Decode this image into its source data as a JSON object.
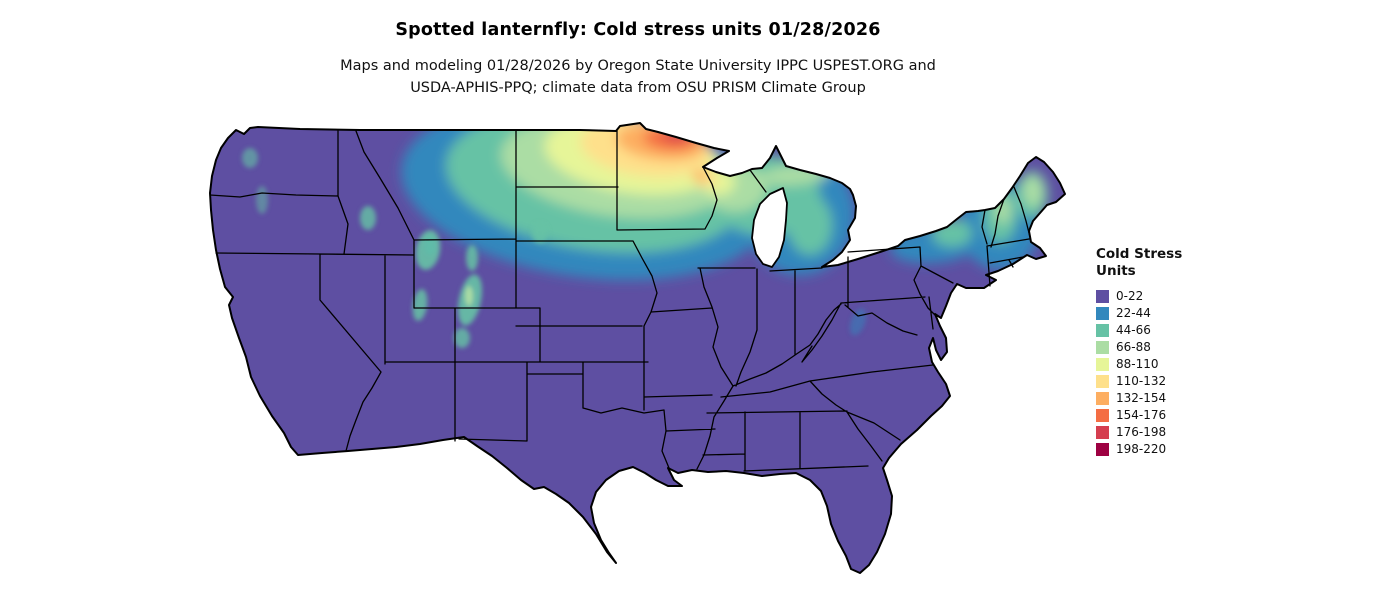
{
  "title": "Spotted lanternfly: Cold stress units 01/28/2026",
  "subtitle": {
    "line1": "Maps and modeling 01/28/2026 by Oregon State University IPPC USPEST.ORG and",
    "line2": "USDA-APHIS-PPQ; climate data from OSU PRISM Climate Group"
  },
  "legend": {
    "title_line1": "Cold Stress",
    "title_line2": "Units",
    "items": [
      {
        "label": "0-22",
        "color": "#5e4fa2"
      },
      {
        "label": "22-44",
        "color": "#3288bd"
      },
      {
        "label": "44-66",
        "color": "#66c2a5"
      },
      {
        "label": "66-88",
        "color": "#abdda4"
      },
      {
        "label": "88-110",
        "color": "#e6f598"
      },
      {
        "label": "110-132",
        "color": "#fee08b"
      },
      {
        "label": "132-154",
        "color": "#fdae61"
      },
      {
        "label": "154-176",
        "color": "#f46d43"
      },
      {
        "label": "176-198",
        "color": "#d53e4f"
      },
      {
        "label": "198-220",
        "color": "#9e0142"
      }
    ]
  },
  "map": {
    "region": "Contiguous United States",
    "base_color": "#5e4fa2",
    "border_color": "#000000",
    "background_color": "#ffffff"
  }
}
